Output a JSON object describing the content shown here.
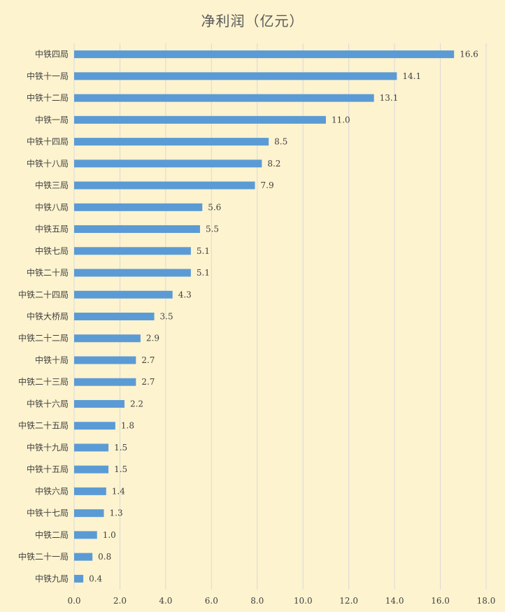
{
  "chart_data": {
    "type": "bar",
    "orientation": "horizontal",
    "title": "净利润（亿元）",
    "xlabel": "",
    "ylabel": "",
    "xlim": [
      0,
      18
    ],
    "xticks": [
      "0.0",
      "2.0",
      "4.0",
      "6.0",
      "8.0",
      "10.0",
      "12.0",
      "14.0",
      "16.0",
      "18.0"
    ],
    "grid": true,
    "categories": [
      "中铁四局",
      "中铁十一局",
      "中铁十二局",
      "中铁一局",
      "中铁十四局",
      "中铁十八局",
      "中铁三局",
      "中铁八局",
      "中铁五局",
      "中铁七局",
      "中铁二十局",
      "中铁二十四局",
      "中铁大桥局",
      "中铁二十二局",
      "中铁十局",
      "中铁二十三局",
      "中铁十六局",
      "中铁二十五局",
      "中铁十九局",
      "中铁十五局",
      "中铁六局",
      "中铁十七局",
      "中铁二局",
      "中铁二十一局",
      "中铁九局"
    ],
    "values": [
      16.6,
      14.1,
      13.1,
      11.0,
      8.5,
      8.2,
      7.9,
      5.6,
      5.5,
      5.1,
      5.1,
      4.3,
      3.5,
      2.9,
      2.7,
      2.7,
      2.2,
      1.8,
      1.5,
      1.5,
      1.4,
      1.3,
      1.0,
      0.8,
      0.4
    ],
    "value_labels": [
      "16.6",
      "14.1",
      "13.1",
      "11.0",
      "8.5",
      "8.2",
      "7.9",
      "5.6",
      "5.5",
      "5.1",
      "5.1",
      "4.3",
      "3.5",
      "2.9",
      "2.7",
      "2.7",
      "2.2",
      "1.8",
      "1.5",
      "1.5",
      "1.4",
      "1.3",
      "1.0",
      "0.8",
      "0.4"
    ],
    "colors": {
      "bar": "#5b9bd5",
      "background": "#fdf3cf",
      "grid": "#d9d9d9",
      "text": "#404040",
      "title": "#595959"
    }
  }
}
